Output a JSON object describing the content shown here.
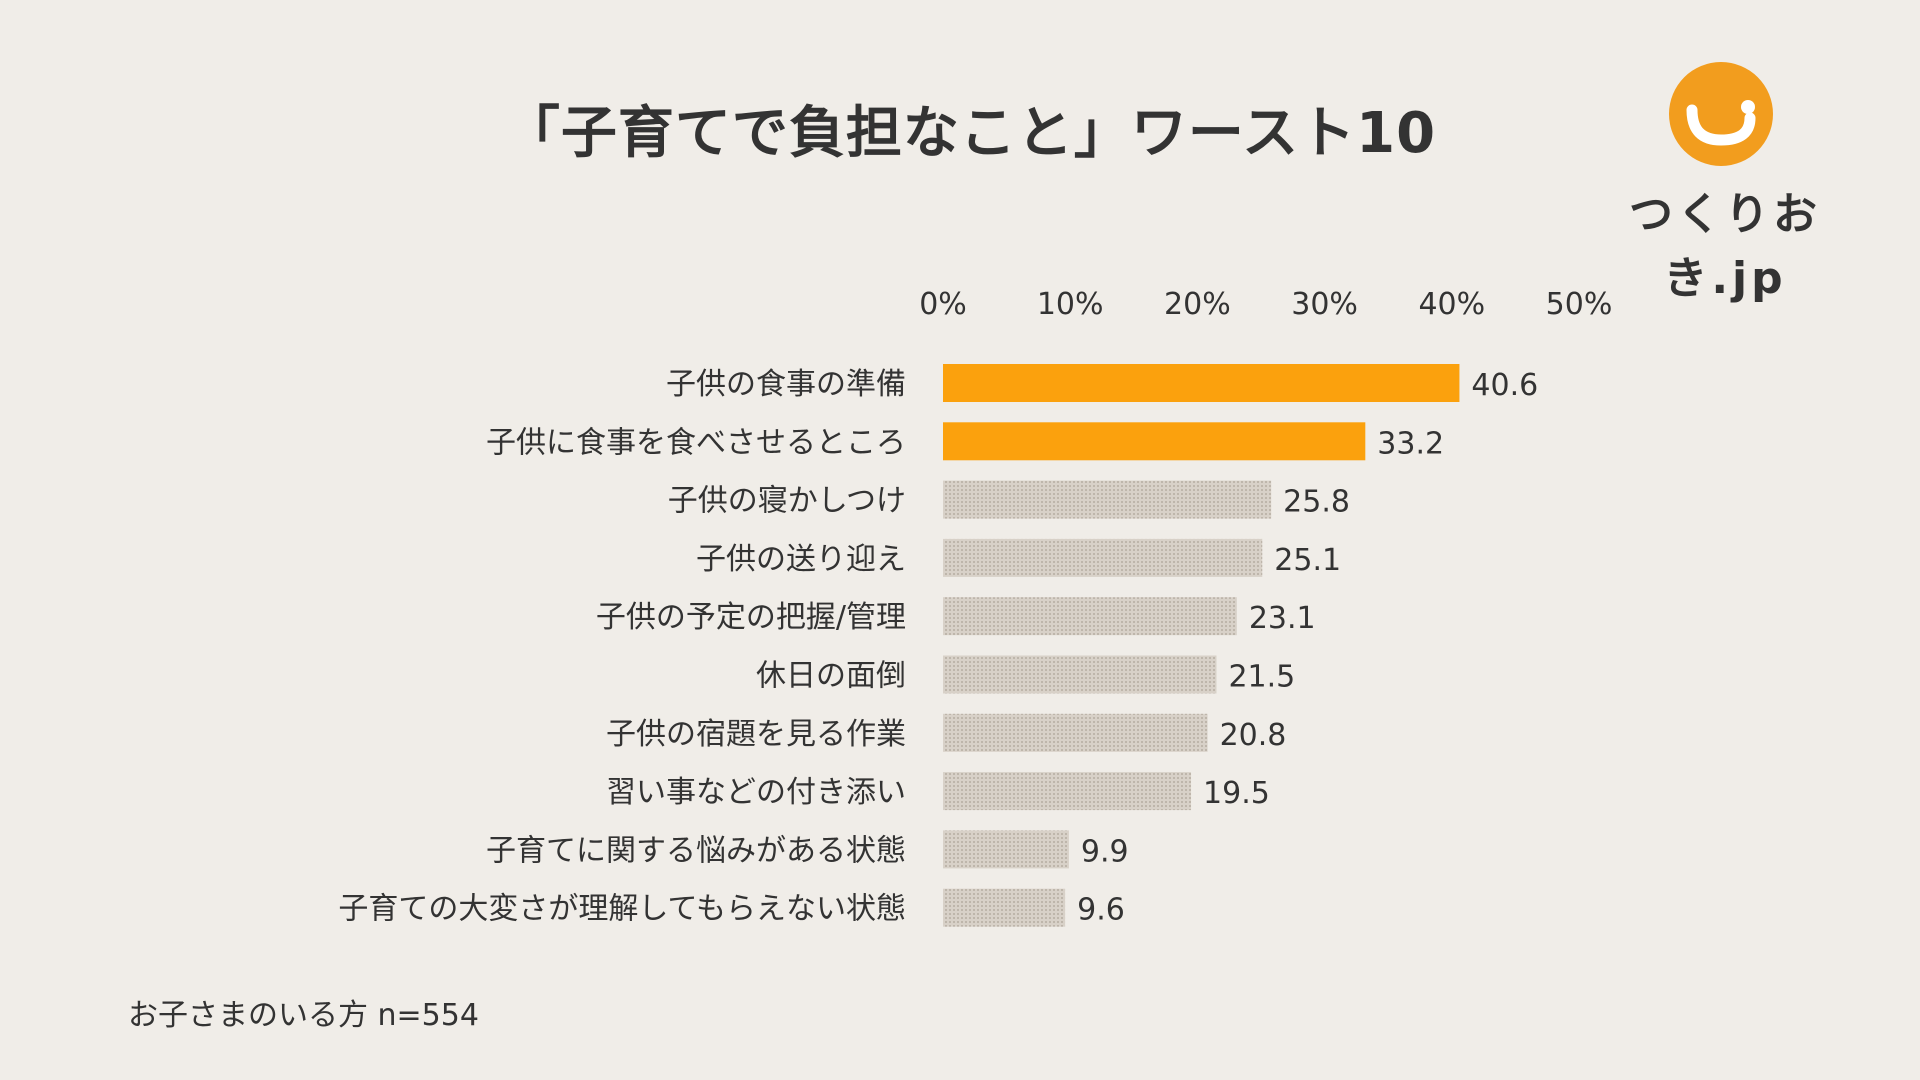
{
  "title": "「子育てで負担なこと」ワースト10",
  "logo": {
    "text": "つくりおき.jp",
    "icon": "smile-circle-icon",
    "color": "#f29d1e"
  },
  "footnote": "お子さまのいる方 n=554",
  "colors": {
    "highlight": "#fba10d",
    "normal": "#cfc7bd",
    "background": "#f0ede8",
    "text": "#333333"
  },
  "chart_data": {
    "type": "bar",
    "orientation": "horizontal",
    "title": "「子育てで負担なこと」ワースト10",
    "categories": [
      "子供の食事の準備",
      "子供に食事を食べさせるところ",
      "子供の寝かしつけ",
      "子供の送り迎え",
      "子供の予定の把握/管理",
      "休日の面倒",
      "子供の宿題を見る作業",
      "習い事などの付き添い",
      "子育てに関する悩みがある状態",
      "子育ての大変さが理解してもらえない状態"
    ],
    "values": [
      40.6,
      33.2,
      25.8,
      25.1,
      23.1,
      21.5,
      20.8,
      19.5,
      9.9,
      9.6
    ],
    "value_labels": [
      "40.6",
      "33.2",
      "25.8",
      "25.1",
      "23.1",
      "21.5",
      "20.8",
      "19.5",
      "9.9",
      "9.6"
    ],
    "highlighted": [
      true,
      true,
      false,
      false,
      false,
      false,
      false,
      false,
      false,
      false
    ],
    "xlim": [
      0,
      50
    ],
    "ticks": [
      0,
      10,
      20,
      30,
      40,
      50
    ],
    "tick_labels": [
      "0%",
      "10%",
      "20%",
      "30%",
      "40%",
      "50%"
    ],
    "axis_position": "top",
    "grid": false,
    "legend": "none",
    "xlabel": "",
    "ylabel": ""
  }
}
